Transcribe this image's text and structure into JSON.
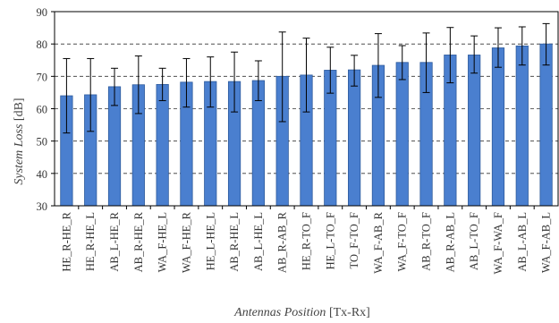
{
  "chart_data": {
    "type": "bar",
    "title": "",
    "xlabel": "Antennas Position",
    "xlabel_suffix": " [Tx-Rx]",
    "ylabel": "System Loss",
    "ylabel_suffix": " [dB]",
    "ylim": [
      30,
      90
    ],
    "yticks": [
      30,
      40,
      50,
      60,
      70,
      80,
      90
    ],
    "grid": "horizontal dashed",
    "bar_color": "#4a7fcf",
    "categories": [
      "HE_R-HE_R",
      "HE_R-HE_L",
      "AB_L-HE_R",
      "AB_R-HE_R",
      "WA_F-HE_L",
      "WA_F-HE_R",
      "HE_L-HE_L",
      "AB_R-HE_L",
      "AB_L-HE_L",
      "AB_R-AB_R",
      "HE_R-TO_F",
      "HE_L-TO_F",
      "TO_F-TO_F",
      "WA_F-AB_R",
      "WA_F-TO_F",
      "AB_R-TO_F",
      "AB_R-AB_L",
      "AB_L-TO_F",
      "WA_F-WA_F",
      "AB_L-AB_L",
      "WA_F-AB_L"
    ],
    "values": [
      64.0,
      64.3,
      66.8,
      67.4,
      67.5,
      68.2,
      68.4,
      68.4,
      68.7,
      70.0,
      70.4,
      71.9,
      72.0,
      73.4,
      74.3,
      74.3,
      76.6,
      76.6,
      78.8,
      79.4,
      80.0
    ],
    "error_upper": [
      75.5,
      75.5,
      72.5,
      76.3,
      72.5,
      75.5,
      76.0,
      77.5,
      74.8,
      83.7,
      81.8,
      79.0,
      76.5,
      83.2,
      79.5,
      83.4,
      85.1,
      82.5,
      85.0,
      85.3,
      86.3
    ],
    "error_lower": [
      52.5,
      53.0,
      61.0,
      58.5,
      62.5,
      60.5,
      60.5,
      59.0,
      62.5,
      56.0,
      59.0,
      64.8,
      67.0,
      63.5,
      69.0,
      65.0,
      68.0,
      71.0,
      72.8,
      73.5,
      73.5
    ]
  }
}
